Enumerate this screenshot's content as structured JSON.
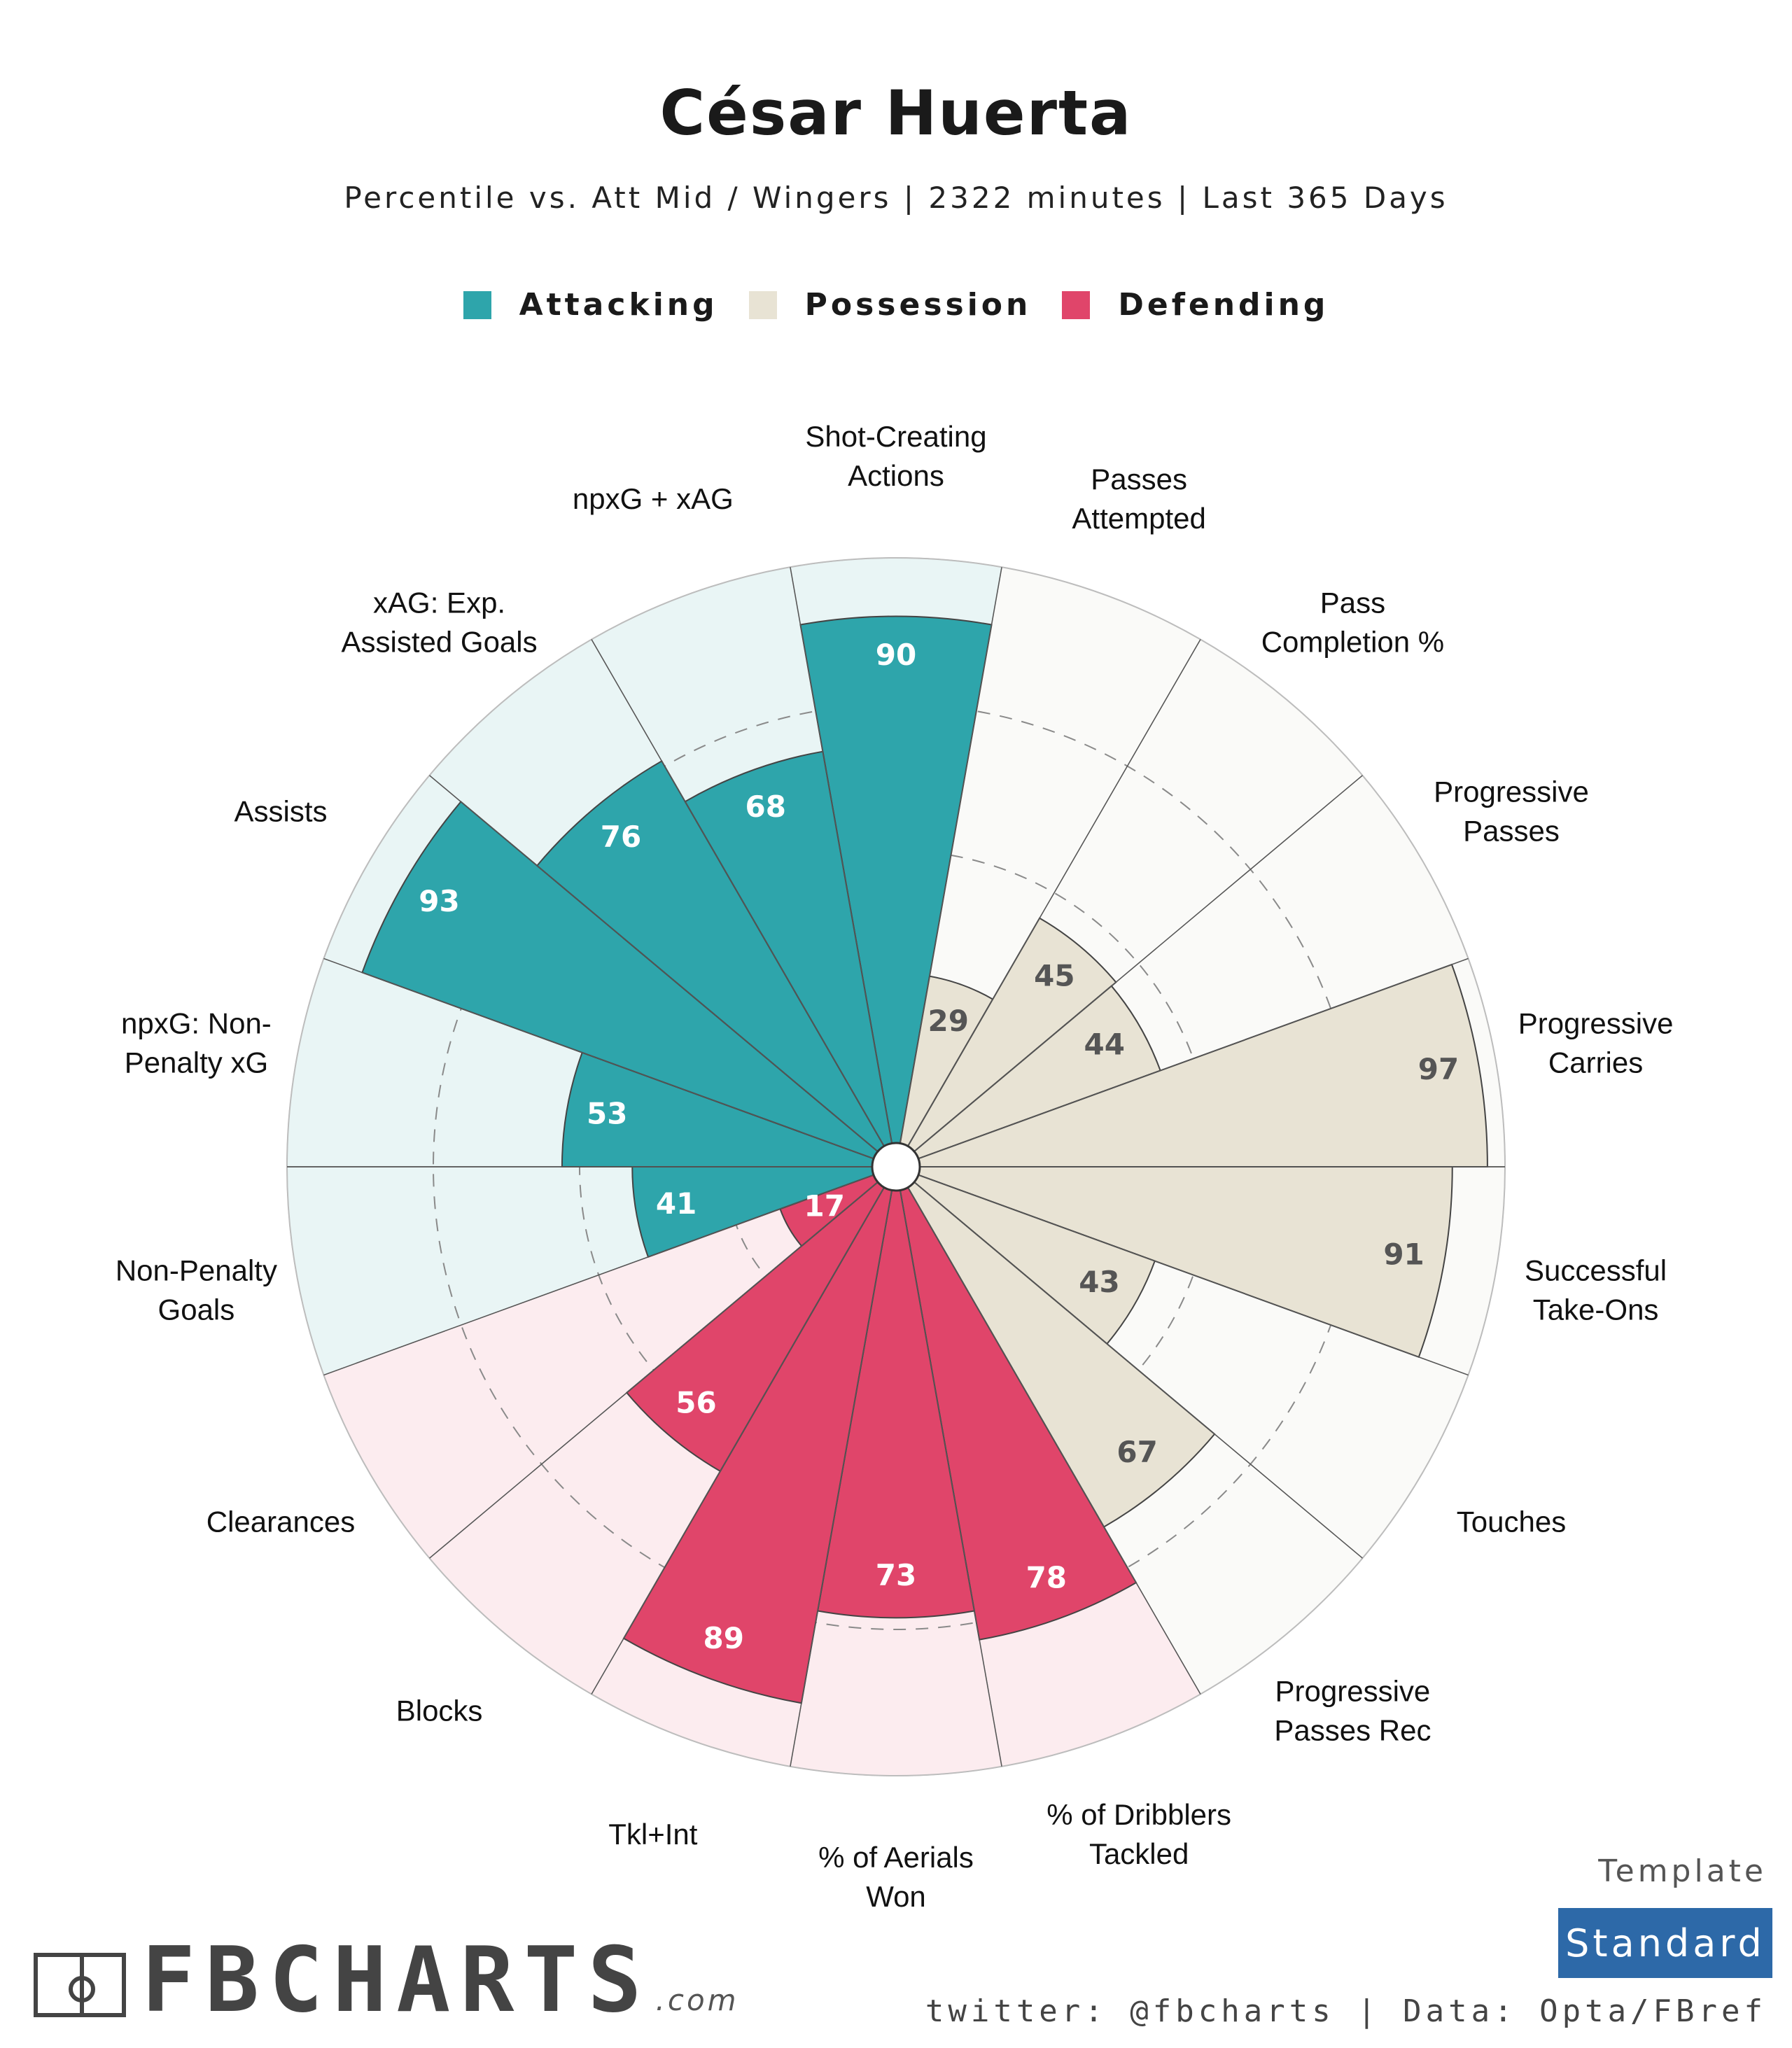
{
  "title": "César Huerta",
  "subtitle": "Percentile vs. Att Mid / Wingers | 2322 minutes | Last 365 Days",
  "legend": [
    {
      "label": "Attacking",
      "color": "#2ea5ab"
    },
    {
      "label": "Possession",
      "color": "#e8e3d4"
    },
    {
      "label": "Defending",
      "color": "#e0456a"
    }
  ],
  "chart_data": {
    "type": "polar-bar",
    "rmax": 100,
    "grid_rings": [
      25,
      50,
      75
    ],
    "categories": [
      {
        "label": [
          "Shot-Creating",
          "Actions"
        ],
        "value": 90,
        "group": "Attacking"
      },
      {
        "label": [
          "Passes",
          "Attempted"
        ],
        "value": 29,
        "group": "Possession"
      },
      {
        "label": [
          "Pass",
          "Completion %"
        ],
        "value": 45,
        "group": "Possession"
      },
      {
        "label": [
          "Progressive",
          "Passes"
        ],
        "value": 44,
        "group": "Possession"
      },
      {
        "label": [
          "Progressive",
          "Carries"
        ],
        "value": 97,
        "group": "Possession"
      },
      {
        "label": [
          "Successful",
          "Take-Ons"
        ],
        "value": 91,
        "group": "Possession"
      },
      {
        "label": [
          "Touches"
        ],
        "value": 43,
        "group": "Possession"
      },
      {
        "label": [
          "Progressive",
          "Passes Rec"
        ],
        "value": 67,
        "group": "Possession"
      },
      {
        "label": [
          "% of Dribblers",
          "Tackled"
        ],
        "value": 78,
        "group": "Defending"
      },
      {
        "label": [
          "% of Aerials",
          "Won"
        ],
        "value": 73,
        "group": "Defending"
      },
      {
        "label": [
          "Tkl+Int"
        ],
        "value": 89,
        "group": "Defending"
      },
      {
        "label": [
          "Blocks"
        ],
        "value": 56,
        "group": "Defending"
      },
      {
        "label": [
          "Clearances"
        ],
        "value": 17,
        "group": "Defending"
      },
      {
        "label": [
          "Non-Penalty",
          "Goals"
        ],
        "value": 41,
        "group": "Attacking"
      },
      {
        "label": [
          "npxG: Non-",
          "Penalty xG"
        ],
        "value": 53,
        "group": "Attacking"
      },
      {
        "label": [
          "Assists"
        ],
        "value": 93,
        "group": "Attacking"
      },
      {
        "label": [
          "xAG: Exp.",
          "Assisted Goals"
        ],
        "value": 76,
        "group": "Attacking"
      },
      {
        "label": [
          "npxG + xAG"
        ],
        "value": 68,
        "group": "Attacking"
      }
    ],
    "group_colors": {
      "Attacking": {
        "bar": "#2ea5ab",
        "bg": "#e9f5f5",
        "text": "#ffffff"
      },
      "Possession": {
        "bar": "#e8e3d4",
        "bg": "#fafaf8",
        "text": "#555555"
      },
      "Defending": {
        "bar": "#e0456a",
        "bg": "#fcecef",
        "text": "#ffffff"
      }
    }
  },
  "branding": {
    "logo_text": "FBCHARTS",
    "logo_suffix": ".com",
    "template_label": "Template",
    "template_value": "Standard",
    "credits": "twitter: @fbcharts | Data: Opta/FBref"
  }
}
